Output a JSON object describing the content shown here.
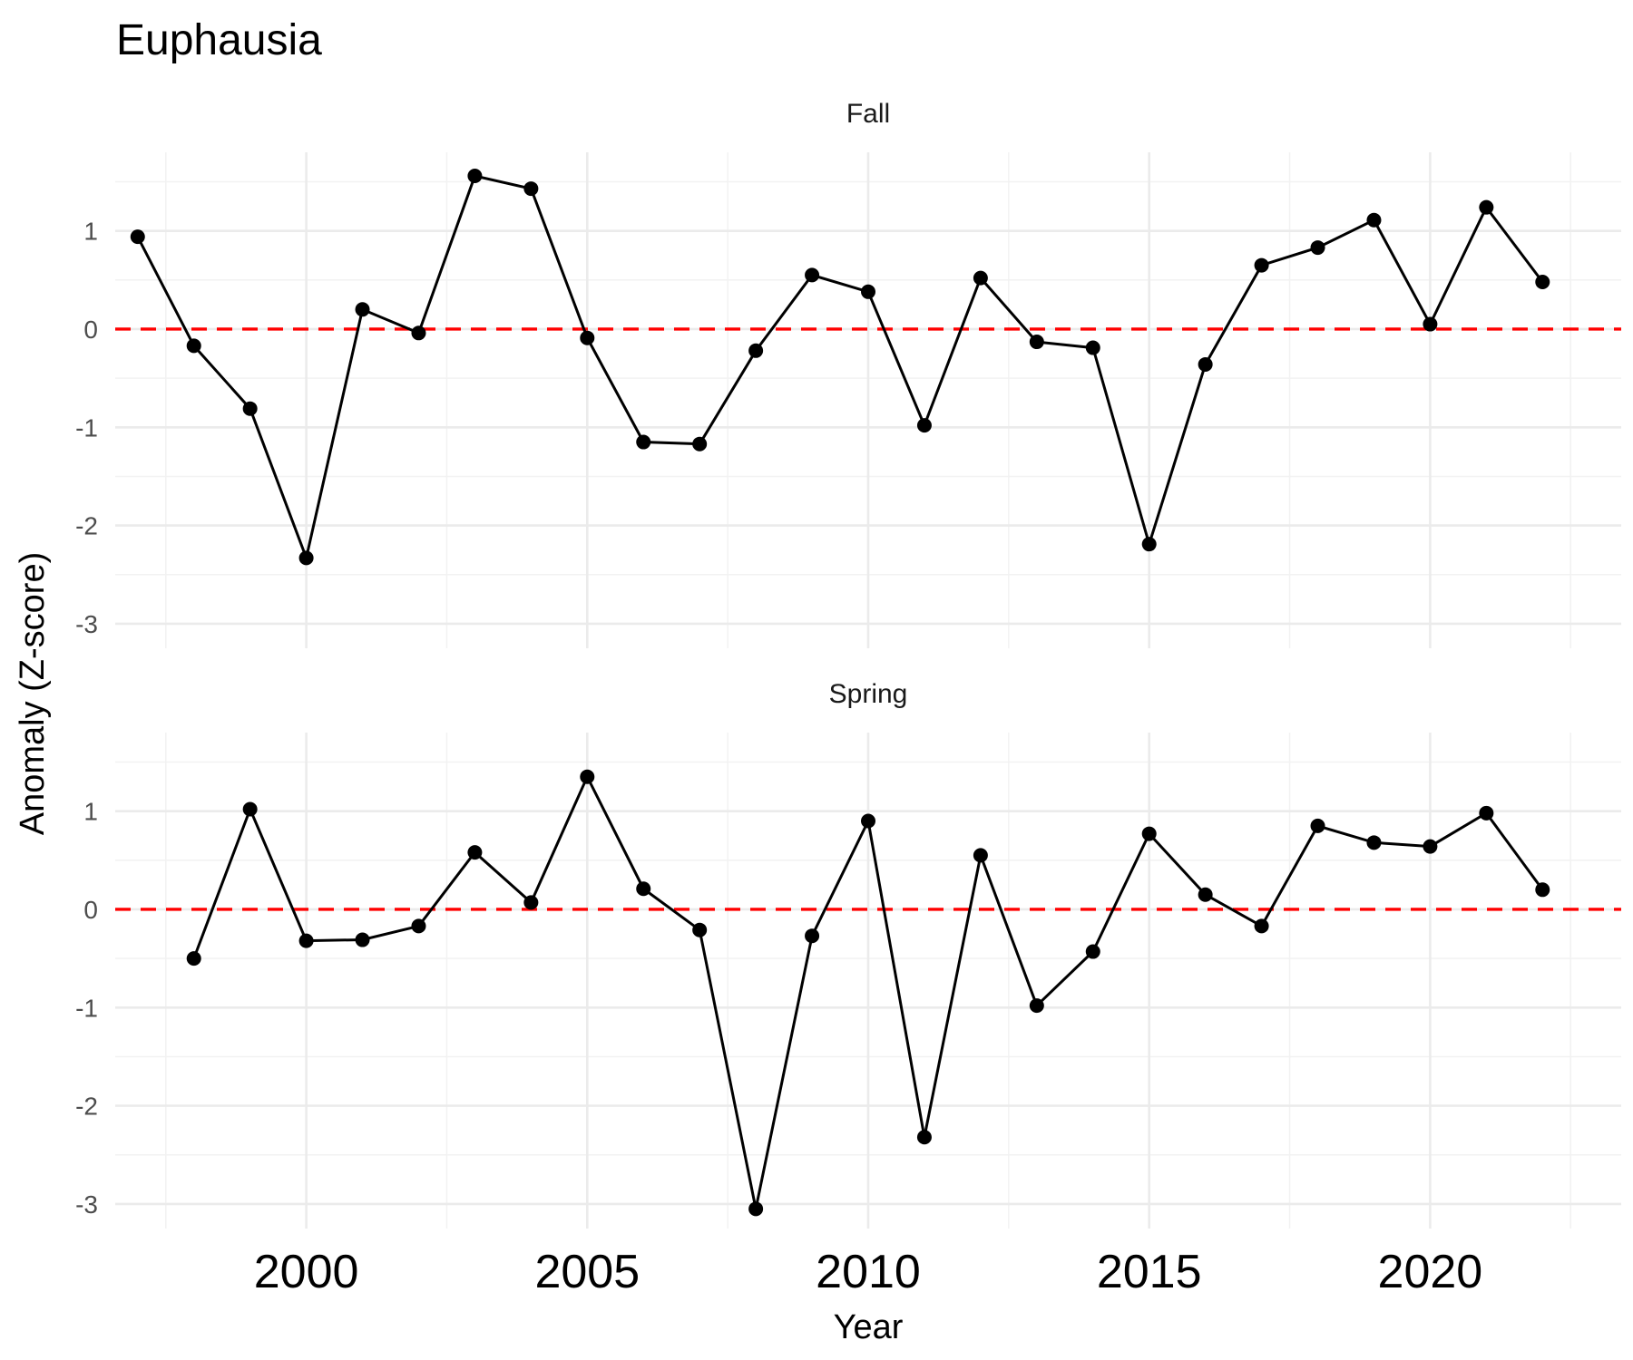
{
  "chart_data": {
    "type": "line",
    "title": "Euphausia",
    "xlabel": "Year",
    "ylabel": "Anomaly (Z-score)",
    "xlim": [
      1996.6,
      2023.4
    ],
    "ylim": [
      -3.25,
      1.8
    ],
    "x_ticks": [
      "2000",
      "2005",
      "2010",
      "2015",
      "2020"
    ],
    "y_ticks": [
      "1",
      "0",
      "-1",
      "-2",
      "-3"
    ],
    "reference_line": {
      "y": 0,
      "color": "#ff0000",
      "style": "dashed"
    },
    "grid": true,
    "facets": [
      {
        "name": "Fall",
        "x": [
          1997,
          1998,
          1999,
          2000,
          2001,
          2002,
          2003,
          2004,
          2005,
          2006,
          2007,
          2008,
          2009,
          2010,
          2011,
          2012,
          2013,
          2014,
          2015,
          2016,
          2017,
          2018,
          2019,
          2020,
          2021,
          2022
        ],
        "values": [
          0.94,
          -0.17,
          -0.81,
          -2.33,
          0.2,
          -0.04,
          1.56,
          1.43,
          -0.09,
          -1.15,
          -1.17,
          -0.22,
          0.55,
          0.38,
          -0.98,
          0.52,
          -0.13,
          -0.19,
          -2.19,
          -0.36,
          0.65,
          0.83,
          1.11,
          0.05,
          1.24,
          0.48
        ]
      },
      {
        "name": "Spring",
        "x": [
          1998,
          1999,
          2000,
          2001,
          2002,
          2003,
          2004,
          2005,
          2006,
          2007,
          2008,
          2009,
          2010,
          2011,
          2012,
          2013,
          2014,
          2015,
          2016,
          2017,
          2018,
          2019,
          2020,
          2021,
          2022
        ],
        "values": [
          -0.5,
          1.02,
          -0.32,
          -0.31,
          -0.17,
          0.58,
          0.07,
          1.35,
          0.21,
          -0.21,
          -3.05,
          -0.27,
          0.9,
          -2.32,
          0.55,
          -0.98,
          -0.43,
          0.77,
          0.15,
          -0.17,
          0.85,
          0.68,
          0.64,
          0.98,
          0.2
        ]
      }
    ]
  }
}
